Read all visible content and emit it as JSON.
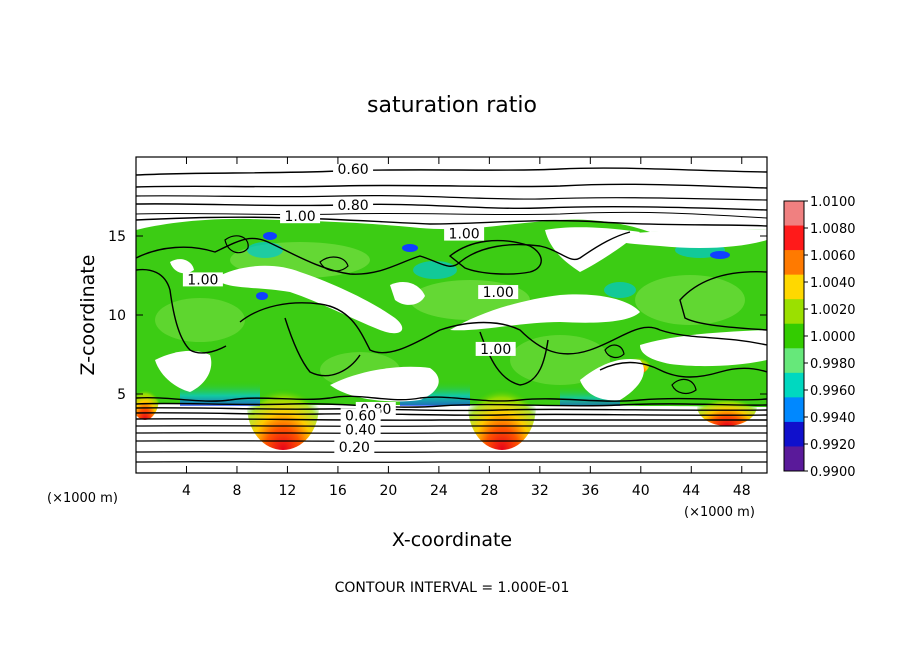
{
  "chart_data": {
    "type": "heatmap",
    "title": "saturation ratio",
    "xlabel": "X-coordinate",
    "ylabel": "Z-coordinate",
    "x_unit": "(×1000 m)",
    "y_unit": "(×1000 m)",
    "xlim": [
      0,
      50
    ],
    "ylim": [
      0,
      20
    ],
    "x_ticks": [
      4,
      8,
      12,
      16,
      20,
      24,
      28,
      32,
      36,
      40,
      44,
      48
    ],
    "y_ticks": [
      5,
      10,
      15
    ],
    "contour_labels": [
      {
        "text": "0.60",
        "x": 17.2,
        "z": 19.0
      },
      {
        "text": "0.80",
        "x": 17.2,
        "z": 16.7
      },
      {
        "text": "1.00",
        "x": 13.0,
        "z": 16.0
      },
      {
        "text": "1.00",
        "x": 26.0,
        "z": 14.9
      },
      {
        "text": "1.00",
        "x": 5.3,
        "z": 12.0
      },
      {
        "text": "1.00",
        "x": 28.7,
        "z": 11.2
      },
      {
        "text": "1.00",
        "x": 28.5,
        "z": 7.6
      },
      {
        "text": "0.80",
        "x": 19.0,
        "z": 3.8
      },
      {
        "text": "0.60",
        "x": 17.8,
        "z": 3.4
      },
      {
        "text": "0.40",
        "x": 17.8,
        "z": 2.5
      },
      {
        "text": "0.20",
        "x": 17.3,
        "z": 1.4
      }
    ],
    "colorbar": {
      "labels": [
        "1.0100",
        "1.0080",
        "1.0060",
        "1.0040",
        "1.0020",
        "1.0000",
        "0.9980",
        "0.9960",
        "0.9940",
        "0.9920",
        "0.9900"
      ],
      "colors": [
        "#f08080",
        "#ff1a1a",
        "#ff7a00",
        "#ffd800",
        "#9be000",
        "#33cc00",
        "#66e87a",
        "#00d8c0",
        "#0088ff",
        "#1010cc",
        "#5a1a9a"
      ]
    },
    "footer": "CONTOUR INTERVAL = 1.000E-01"
  }
}
